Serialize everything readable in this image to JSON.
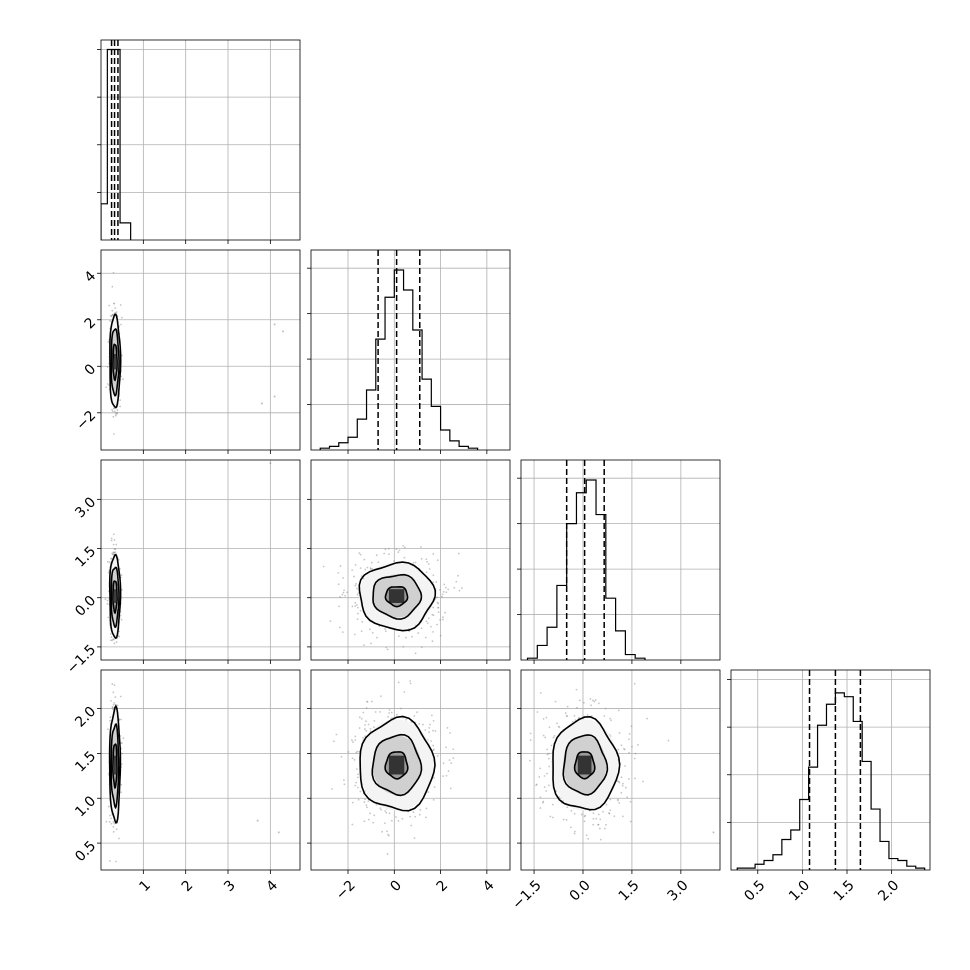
{
  "chart_data": {
    "type": "corner",
    "n_params": 4,
    "grid": true,
    "colors": {
      "line": "#000000",
      "grid": "#b0b0b0",
      "points": "#808080"
    },
    "params": [
      {
        "range": [
          0.0,
          4.7
        ],
        "ticks": [
          1,
          2,
          3,
          4
        ],
        "tick_labels": [
          "1",
          "2",
          "3",
          "4"
        ],
        "quantiles": [
          0.25,
          0.32,
          0.4
        ]
      },
      {
        "range": [
          -3.6,
          5.0
        ],
        "ticks": [
          -2,
          0,
          2,
          4
        ],
        "tick_labels": [
          "−2",
          "0",
          "2",
          "4"
        ],
        "quantiles": [
          -0.7,
          0.1,
          1.1
        ]
      },
      {
        "range": [
          -1.9,
          4.2
        ],
        "ticks": [
          -1.5,
          0.0,
          1.5,
          3.0
        ],
        "tick_labels": [
          "−1.5",
          "0.0",
          "1.5",
          "3.0"
        ],
        "quantiles": [
          -0.5,
          0.05,
          0.65
        ]
      },
      {
        "range": [
          0.2,
          2.43
        ],
        "ticks": [
          0.5,
          1.0,
          1.5,
          2.0
        ],
        "tick_labels": [
          "0.5",
          "1.0",
          "1.5",
          "2.0"
        ],
        "quantiles": [
          1.08,
          1.37,
          1.65
        ]
      }
    ],
    "histograms": [
      {
        "param": 0,
        "bin_edges": [
          0.0,
          0.15,
          0.3,
          0.45,
          0.6,
          0.7
        ],
        "counts": [
          0.19,
          1.0,
          1.0,
          0.09,
          0.09
        ],
        "ymax": 1.05
      },
      {
        "param": 1,
        "bin_edges": [
          -3.2,
          -2.8,
          -2.4,
          -2.0,
          -1.6,
          -1.2,
          -0.8,
          -0.4,
          0.0,
          0.4,
          0.8,
          1.2,
          1.6,
          2.0,
          2.4,
          2.8,
          3.2,
          3.6
        ],
        "counts": [
          0.01,
          0.02,
          0.04,
          0.07,
          0.17,
          0.33,
          0.61,
          0.84,
          0.99,
          0.88,
          0.66,
          0.39,
          0.24,
          0.11,
          0.05,
          0.02,
          0.01
        ],
        "ymax": 1.1
      },
      {
        "param": 2,
        "bin_edges": [
          -1.7,
          -1.4,
          -1.1,
          -0.8,
          -0.5,
          -0.2,
          0.1,
          0.4,
          0.7,
          1.0,
          1.3,
          1.6,
          1.9
        ],
        "counts": [
          0.01,
          0.08,
          0.18,
          0.41,
          0.75,
          0.92,
          0.99,
          0.8,
          0.34,
          0.16,
          0.03,
          0.01
        ],
        "ymax": 1.1
      },
      {
        "param": 3,
        "bin_edges": [
          0.27,
          0.37,
          0.47,
          0.57,
          0.67,
          0.77,
          0.87,
          0.97,
          1.07,
          1.17,
          1.27,
          1.37,
          1.47,
          1.57,
          1.67,
          1.77,
          1.87,
          1.97,
          2.07,
          2.17,
          2.27,
          2.37
        ],
        "counts": [
          0.01,
          0.01,
          0.03,
          0.05,
          0.08,
          0.16,
          0.21,
          0.37,
          0.54,
          0.76,
          0.87,
          0.93,
          0.91,
          0.78,
          0.57,
          0.32,
          0.15,
          0.06,
          0.05,
          0.02,
          0.01
        ],
        "ymax": 1.05
      }
    ],
    "scatter_panels": [
      {
        "x_param": 0,
        "y_param": 1,
        "center": [
          0.33,
          0.2
        ],
        "sigma": [
          0.06,
          0.95
        ],
        "contour_sigma_multipliers": [
          0.8,
          1.5,
          2.1
        ]
      },
      {
        "x_param": 0,
        "y_param": 2,
        "center": [
          0.33,
          0.05
        ],
        "sigma": [
          0.06,
          0.6
        ],
        "contour_sigma_multipliers": [
          0.8,
          1.5,
          2.1
        ]
      },
      {
        "x_param": 1,
        "y_param": 2,
        "center": [
          0.1,
          0.05
        ],
        "sigma": [
          0.95,
          0.6
        ],
        "contour_sigma_multipliers": [
          0.5,
          1.1,
          1.7
        ]
      },
      {
        "x_param": 0,
        "y_param": 3,
        "center": [
          0.33,
          1.37
        ],
        "sigma": [
          0.06,
          0.3
        ],
        "contour_sigma_multipliers": [
          0.8,
          1.5,
          2.1
        ]
      },
      {
        "x_param": 1,
        "y_param": 3,
        "center": [
          0.1,
          1.37
        ],
        "sigma": [
          0.95,
          0.3
        ],
        "contour_sigma_multipliers": [
          0.5,
          1.1,
          1.7
        ]
      },
      {
        "x_param": 2,
        "y_param": 3,
        "center": [
          0.05,
          1.37
        ],
        "sigma": [
          0.6,
          0.3
        ],
        "contour_sigma_multipliers": [
          0.5,
          1.1,
          1.7
        ]
      }
    ],
    "outliers": [
      {
        "x_param": 0,
        "y_param": 1,
        "points": [
          [
            4.1,
            1.8
          ],
          [
            4.3,
            1.5
          ],
          [
            3.8,
            -1.6
          ],
          [
            4.1,
            -1.3
          ]
        ]
      },
      {
        "x_param": 0,
        "y_param": 2,
        "points": [
          [
            4.0,
            4.1
          ]
        ]
      },
      {
        "x_param": 0,
        "y_param": 3,
        "points": [
          [
            4.2,
            0.62
          ],
          [
            3.7,
            0.75
          ]
        ]
      },
      {
        "x_param": 2,
        "y_param": 3,
        "points": [
          [
            4.0,
            0.62
          ]
        ]
      }
    ]
  }
}
